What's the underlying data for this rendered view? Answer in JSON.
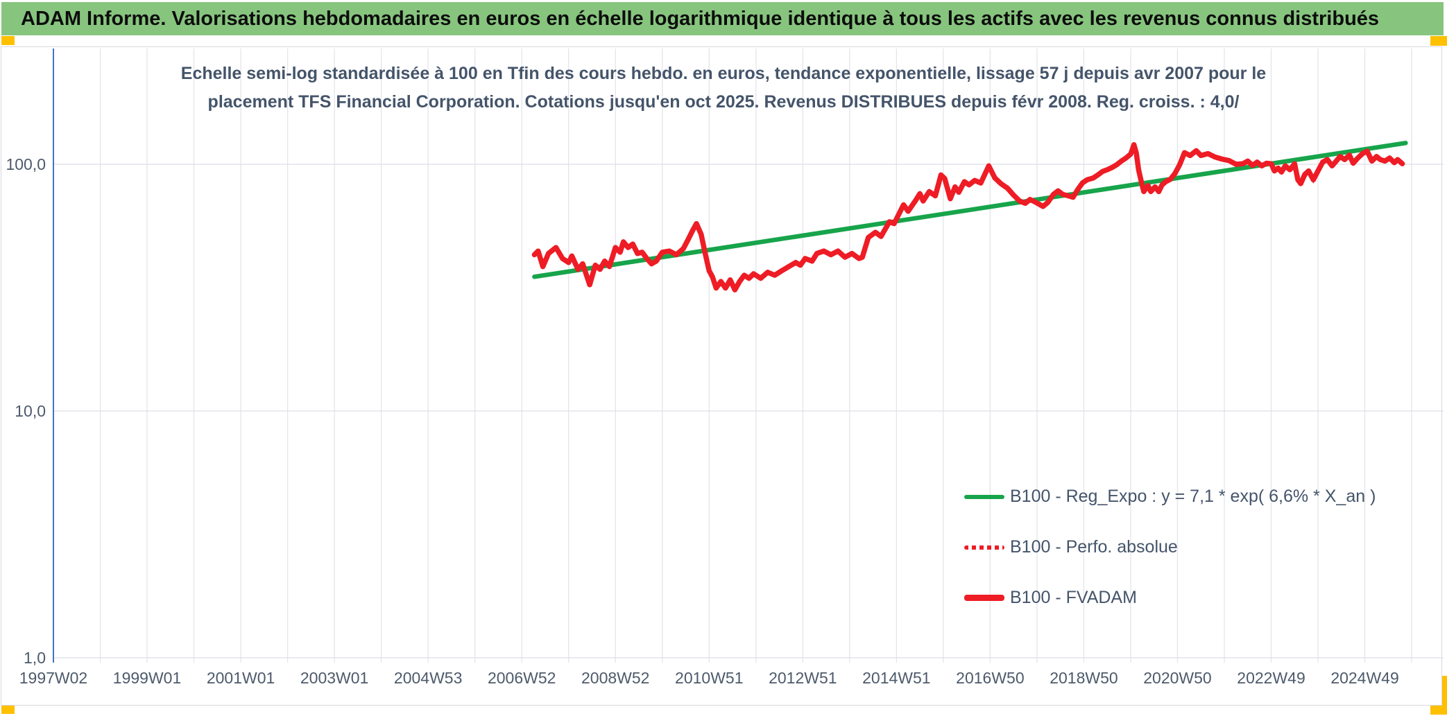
{
  "header": {
    "title": "ADAM Informe. Valorisations hebdomadaires en euros en échelle logarithmique identique à tous les actifs avec les revenus connus distribués",
    "bar_color": "#87C57E",
    "corner_cell_color": "#FFC000"
  },
  "subtitle": {
    "line1": "Echelle semi-log standardisée à 100 en Tfin des cours hebdo. en euros, tendance exponentielle, lissage 57 j depuis avr 2007 pour le",
    "line2": "placement TFS Financial Corporation. Cotations jusqu'en oct 2025. Revenus DISTRIBUES depuis févr 2008. Reg. croiss. : 4,0/"
  },
  "legend": {
    "items": [
      {
        "label": "B100 - Reg_Expo : y = 7,1 * exp( 6,6% * X_an )",
        "color": "#17A44B",
        "style": "solid"
      },
      {
        "label": "B100 - Perfo. absolue",
        "color": "#EE1C25",
        "style": "dotted"
      },
      {
        "label": "B100 - FVADAM",
        "color": "#EE1C25",
        "style": "solid-thick"
      }
    ]
  },
  "chart_data": {
    "type": "line",
    "title": "Echelle semi-log standardisée à 100 en Tfin des cours hebdo. en euros, tendance exponentielle, lissage 57 j depuis avr 2007 pour le placement TFS Financial Corporation. Cotations jusqu'en oct 2025. Revenus DISTRIBUES depuis févr 2008. Reg. croiss. : 4,0/",
    "x_axis": {
      "labels": [
        "1997W02",
        "1999W01",
        "2001W01",
        "2003W01",
        "2004W53",
        "2006W52",
        "2008W52",
        "2010W51",
        "2012W51",
        "2014W51",
        "2016W50",
        "2018W50",
        "2020W50",
        "2022W49",
        "2024W49"
      ],
      "start_year": 1997.05,
      "end_year": 2027.0,
      "gridline_interval_years": 1,
      "label_interval_years": 2
    },
    "y_axis": {
      "scale": "log10",
      "ticks": [
        {
          "label": "100,0",
          "value": 100
        },
        {
          "label": "10,0",
          "value": 10
        },
        {
          "label": "1,0",
          "value": 1
        }
      ],
      "range": [
        1,
        300
      ],
      "grid": true
    },
    "axis_color": "#4472C4",
    "grid_color": "#e3e5ea",
    "series": [
      {
        "name": "B100 - Reg_Expo : y = 7,1 * exp( 6,6% * X_an )",
        "color": "#17A44B",
        "style": "solid",
        "points": [
          [
            2007.32,
            35
          ],
          [
            2025.92,
            122
          ]
        ]
      },
      {
        "name": "B100 - Perfo. absolue",
        "color": "#EE1C25",
        "style": "dotted",
        "points_ref": "B100 - FVADAM",
        "note_visible": false
      },
      {
        "name": "B100 - FVADAM",
        "color": "#EE1C25",
        "style": "solid",
        "points": [
          [
            2007.32,
            43
          ],
          [
            2007.4,
            44.5
          ],
          [
            2007.5,
            38.5
          ],
          [
            2007.62,
            43.5
          ],
          [
            2007.78,
            46
          ],
          [
            2007.92,
            41.5
          ],
          [
            2008.05,
            40
          ],
          [
            2008.12,
            42.5
          ],
          [
            2008.25,
            37.5
          ],
          [
            2008.35,
            39.5
          ],
          [
            2008.5,
            32.5
          ],
          [
            2008.62,
            39
          ],
          [
            2008.72,
            37.5
          ],
          [
            2008.82,
            40.5
          ],
          [
            2008.92,
            38.5
          ],
          [
            2009.05,
            46
          ],
          [
            2009.15,
            44
          ],
          [
            2009.22,
            48.5
          ],
          [
            2009.32,
            46
          ],
          [
            2009.42,
            47.5
          ],
          [
            2009.52,
            43.5
          ],
          [
            2009.62,
            44
          ],
          [
            2009.72,
            41.5
          ],
          [
            2009.82,
            39.5
          ],
          [
            2009.92,
            40.5
          ],
          [
            2010.05,
            44
          ],
          [
            2010.2,
            44.5
          ],
          [
            2010.35,
            43
          ],
          [
            2010.5,
            45.5
          ],
          [
            2010.6,
            49.5
          ],
          [
            2010.7,
            54
          ],
          [
            2010.78,
            57.5
          ],
          [
            2010.88,
            52
          ],
          [
            2010.96,
            44
          ],
          [
            2011.05,
            37
          ],
          [
            2011.12,
            35
          ],
          [
            2011.2,
            31.5
          ],
          [
            2011.3,
            33.5
          ],
          [
            2011.4,
            31.5
          ],
          [
            2011.5,
            34
          ],
          [
            2011.6,
            31
          ],
          [
            2011.7,
            33.5
          ],
          [
            2011.8,
            35.5
          ],
          [
            2011.9,
            34.5
          ],
          [
            2012.0,
            36
          ],
          [
            2012.15,
            34.5
          ],
          [
            2012.3,
            36.5
          ],
          [
            2012.45,
            35.5
          ],
          [
            2012.6,
            37
          ],
          [
            2012.75,
            38.5
          ],
          [
            2012.9,
            40
          ],
          [
            2013.0,
            39
          ],
          [
            2013.1,
            41.5
          ],
          [
            2013.25,
            40.5
          ],
          [
            2013.35,
            43.5
          ],
          [
            2013.5,
            44.5
          ],
          [
            2013.65,
            43
          ],
          [
            2013.8,
            44.5
          ],
          [
            2013.95,
            42
          ],
          [
            2014.1,
            43.5
          ],
          [
            2014.25,
            41.5
          ],
          [
            2014.32,
            42
          ],
          [
            2014.45,
            50.5
          ],
          [
            2014.6,
            53
          ],
          [
            2014.72,
            51
          ],
          [
            2014.9,
            58.5
          ],
          [
            2015.0,
            57.5
          ],
          [
            2015.2,
            68.5
          ],
          [
            2015.3,
            64.5
          ],
          [
            2015.45,
            71
          ],
          [
            2015.55,
            76
          ],
          [
            2015.62,
            71
          ],
          [
            2015.75,
            77.5
          ],
          [
            2015.88,
            74.5
          ],
          [
            2016.0,
            90.5
          ],
          [
            2016.08,
            87.5
          ],
          [
            2016.2,
            72.5
          ],
          [
            2016.3,
            81
          ],
          [
            2016.38,
            77
          ],
          [
            2016.5,
            85
          ],
          [
            2016.6,
            82.5
          ],
          [
            2016.72,
            86
          ],
          [
            2016.85,
            84
          ],
          [
            2017.02,
            98.5
          ],
          [
            2017.15,
            88
          ],
          [
            2017.28,
            83.5
          ],
          [
            2017.42,
            80
          ],
          [
            2017.55,
            75
          ],
          [
            2017.68,
            71
          ],
          [
            2017.8,
            69.5
          ],
          [
            2017.9,
            72
          ],
          [
            2018.0,
            70.5
          ],
          [
            2018.18,
            67.5
          ],
          [
            2018.28,
            70
          ],
          [
            2018.4,
            75.5
          ],
          [
            2018.5,
            78
          ],
          [
            2018.6,
            75.5
          ],
          [
            2018.72,
            74.5
          ],
          [
            2018.82,
            73.5
          ],
          [
            2018.92,
            79
          ],
          [
            2019.02,
            84
          ],
          [
            2019.12,
            86.5
          ],
          [
            2019.25,
            88
          ],
          [
            2019.35,
            90.5
          ],
          [
            2019.45,
            93.5
          ],
          [
            2019.55,
            95
          ],
          [
            2019.65,
            97
          ],
          [
            2019.75,
            99.5
          ],
          [
            2019.85,
            103
          ],
          [
            2019.95,
            106
          ],
          [
            2020.05,
            110
          ],
          [
            2020.12,
            120
          ],
          [
            2020.17,
            111
          ],
          [
            2020.22,
            95
          ],
          [
            2020.28,
            84.5
          ],
          [
            2020.33,
            77.5
          ],
          [
            2020.42,
            82
          ],
          [
            2020.48,
            77.5
          ],
          [
            2020.57,
            81
          ],
          [
            2020.65,
            77.5
          ],
          [
            2020.72,
            82.5
          ],
          [
            2020.8,
            85
          ],
          [
            2020.9,
            87
          ],
          [
            2021.0,
            92
          ],
          [
            2021.1,
            100
          ],
          [
            2021.2,
            111.5
          ],
          [
            2021.32,
            108.5
          ],
          [
            2021.45,
            113.5
          ],
          [
            2021.55,
            108.5
          ],
          [
            2021.7,
            110.5
          ],
          [
            2021.85,
            107
          ],
          [
            2022.0,
            105
          ],
          [
            2022.15,
            103.5
          ],
          [
            2022.3,
            100
          ],
          [
            2022.45,
            100.5
          ],
          [
            2022.55,
            103
          ],
          [
            2022.65,
            99
          ],
          [
            2022.75,
            102
          ],
          [
            2022.85,
            98.5
          ],
          [
            2022.95,
            101
          ],
          [
            2023.05,
            100.5
          ],
          [
            2023.12,
            94
          ],
          [
            2023.2,
            96.5
          ],
          [
            2023.27,
            93
          ],
          [
            2023.35,
            98.5
          ],
          [
            2023.45,
            95
          ],
          [
            2023.55,
            100.5
          ],
          [
            2023.62,
            86.5
          ],
          [
            2023.68,
            83.5
          ],
          [
            2023.77,
            91
          ],
          [
            2023.85,
            94
          ],
          [
            2023.95,
            86.5
          ],
          [
            2024.05,
            94
          ],
          [
            2024.15,
            102
          ],
          [
            2024.25,
            104.5
          ],
          [
            2024.35,
            98.5
          ],
          [
            2024.42,
            102
          ],
          [
            2024.52,
            107.5
          ],
          [
            2024.62,
            104.5
          ],
          [
            2024.72,
            109
          ],
          [
            2024.8,
            101
          ],
          [
            2024.9,
            106
          ],
          [
            2025.0,
            110.5
          ],
          [
            2025.1,
            113
          ],
          [
            2025.2,
            103
          ],
          [
            2025.3,
            107.5
          ],
          [
            2025.38,
            104.5
          ],
          [
            2025.48,
            103
          ],
          [
            2025.58,
            106
          ],
          [
            2025.68,
            101.5
          ],
          [
            2025.75,
            104.5
          ],
          [
            2025.85,
            100.5
          ]
        ]
      }
    ],
    "legend_position": "inside-right-lower"
  }
}
